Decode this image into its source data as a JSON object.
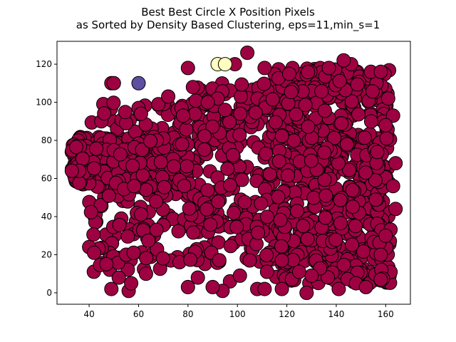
{
  "chart_data": {
    "type": "scatter",
    "title_lines": [
      "Best Best Circle X Position Pixels",
      "as Sorted by Density Based Clustering, eps=11,min_s=1"
    ],
    "xlabel": "",
    "ylabel": "",
    "xlim": [
      27,
      170
    ],
    "ylim": [
      -6,
      132
    ],
    "xticks": [
      40,
      60,
      80,
      100,
      120,
      140,
      160
    ],
    "yticks": [
      0,
      20,
      40,
      60,
      80,
      100,
      120
    ],
    "grid": false,
    "marker_edge_color": "#000000",
    "clusters": [
      {
        "color": "#9e0142",
        "generated_points": {
          "count": 1500,
          "seed": 12345,
          "regions": [
            {
              "x_range": [
                35,
                80
              ],
              "y_range": [
                55,
                82
              ],
              "weight": 0.22
            },
            {
              "x_range": [
                40,
                80
              ],
              "y_range": [
                10,
                100
              ],
              "weight": 0.12
            },
            {
              "x_range": [
                80,
                115
              ],
              "y_range": [
                15,
                110
              ],
              "weight": 0.18
            },
            {
              "x_range": [
                115,
                162
              ],
              "y_range": [
                5,
                118
              ],
              "weight": 0.42
            },
            {
              "x_range": [
                33,
                40
              ],
              "y_range": [
                58,
                78
              ],
              "weight": 0.06
            }
          ]
        },
        "points": [
          [
            104,
            126
          ],
          [
            99,
            120
          ],
          [
            111,
            118
          ],
          [
            80,
            118
          ],
          [
            121,
            115
          ],
          [
            82,
            108
          ],
          [
            49,
            110
          ],
          [
            50,
            110
          ],
          [
            36,
            64
          ],
          [
            33,
            64
          ],
          [
            128,
            0
          ],
          [
            118,
            2
          ],
          [
            108,
            2
          ],
          [
            111,
            2
          ],
          [
            49,
            2
          ],
          [
            56,
            1
          ],
          [
            57,
            5
          ],
          [
            97,
            6
          ],
          [
            101,
            9
          ],
          [
            63,
            10
          ],
          [
            94,
            1
          ],
          [
            90,
            3
          ],
          [
            80,
            3
          ],
          [
            84,
            8
          ],
          [
            47,
            15
          ],
          [
            52,
            8
          ],
          [
            55,
            20
          ],
          [
            58,
            21
          ],
          [
            40,
            24
          ],
          [
            42,
            21
          ],
          [
            148,
            5
          ],
          [
            152,
            3
          ],
          [
            158,
            7
          ],
          [
            141,
            2
          ],
          [
            130,
            9
          ],
          [
            125,
            11
          ],
          [
            118,
            17
          ],
          [
            105,
            17
          ],
          [
            112,
            11
          ],
          [
            163,
            93
          ],
          [
            161,
            102
          ],
          [
            160,
            88
          ],
          [
            164,
            68
          ],
          [
            163,
            56
          ],
          [
            164,
            44
          ],
          [
            160,
            30
          ],
          [
            158,
            20
          ],
          [
            154,
            116
          ],
          [
            158,
            116
          ],
          [
            146,
            120
          ],
          [
            143,
            122
          ],
          [
            137,
            118
          ],
          [
            60,
            97
          ],
          [
            61,
            94
          ],
          [
            68,
            99
          ],
          [
            72,
            103
          ],
          [
            92,
            102
          ],
          [
            95,
            96
          ],
          [
            88,
            100
          ],
          [
            78,
            93
          ]
        ]
      },
      {
        "color": "#5e4fa2",
        "points": [
          [
            60,
            110
          ]
        ]
      },
      {
        "color": "#ffffbf",
        "points": [
          [
            92,
            120
          ],
          [
            95,
            120
          ]
        ]
      }
    ]
  }
}
